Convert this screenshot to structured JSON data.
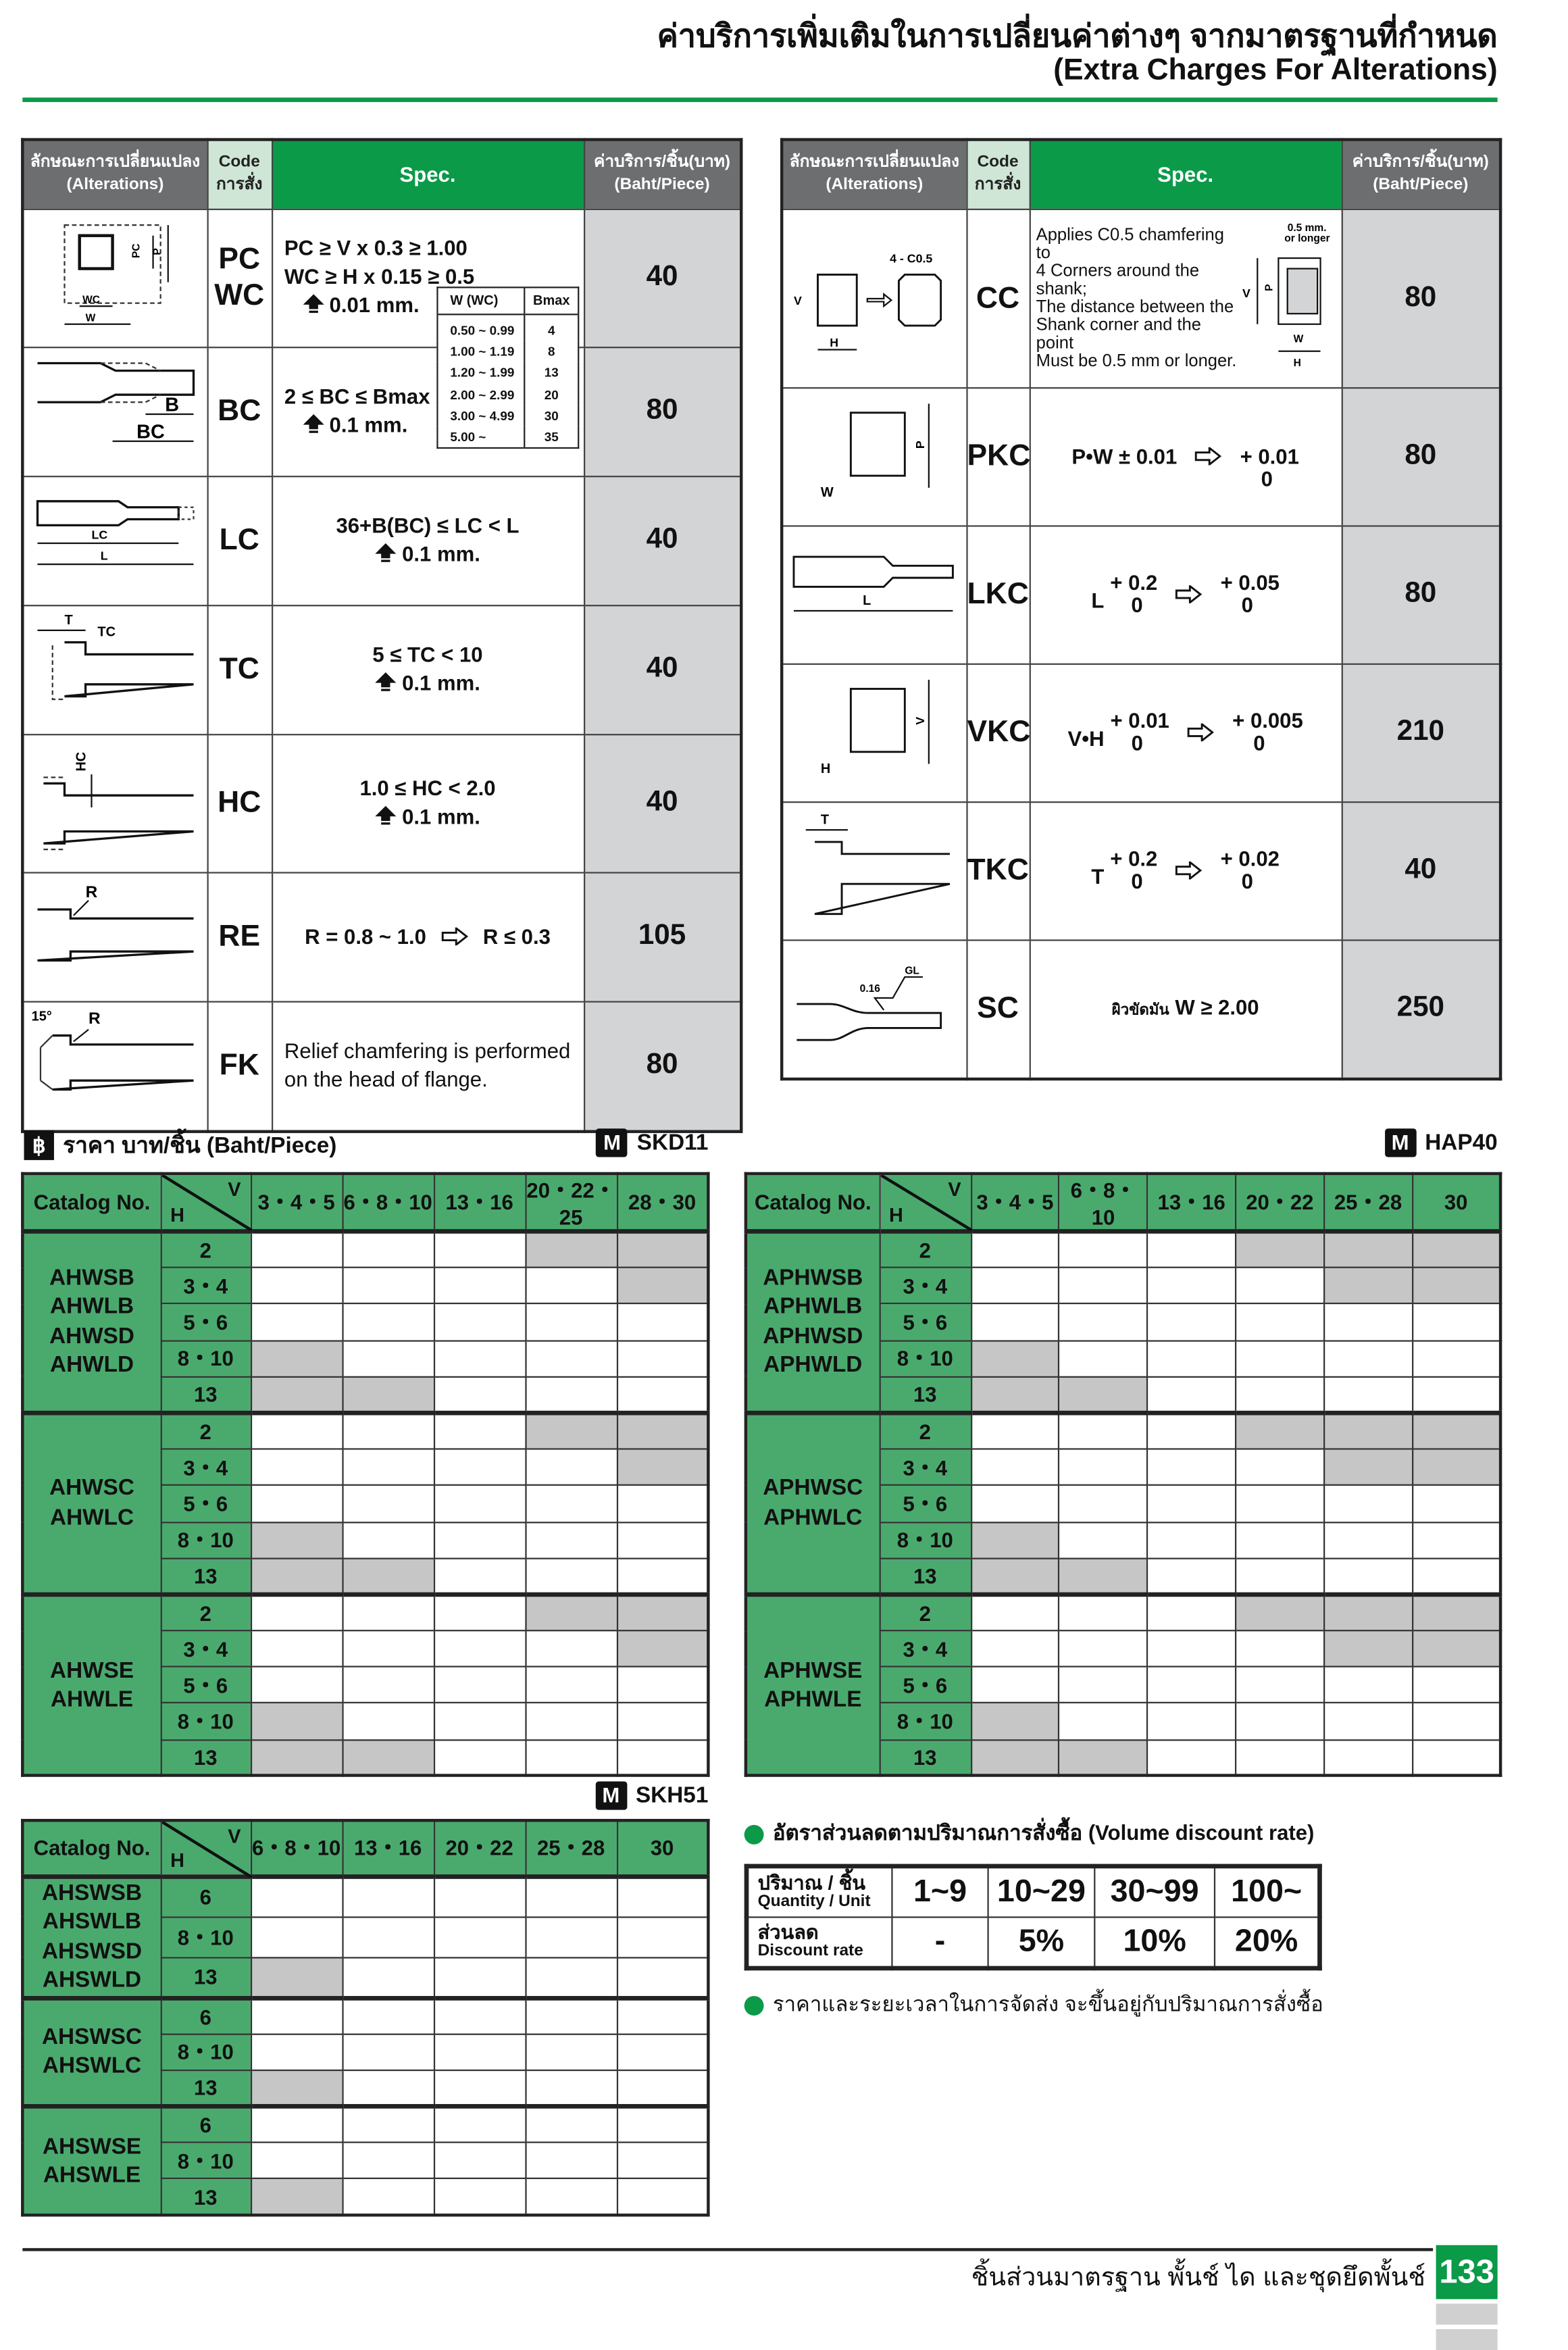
{
  "header": {
    "title_th": "ค่าบริการเพิ่มเติมในการเปลี่ยนค่าต่างๆ จากมาตรฐานที่กำหนด",
    "title_en": "(Extra Charges For Alterations)"
  },
  "colors": {
    "accent_green": "#0a9a48",
    "table_green": "#4aaa6e",
    "header_gray": "#6d6e70",
    "price_gray": "#d3d4d6",
    "unavailable_gray": "#c6c6c6"
  },
  "alt_headers": {
    "alt_th": "ลักษณะการเปลี่ยนแปลง",
    "alt_en": "(Alterations)",
    "code_en": "Code",
    "code_th": "การสั่ง",
    "spec": "Spec.",
    "price_th": "ค่าบริการ/ชิ้น(บาท)",
    "price_en": "(Baht/Piece)"
  },
  "left_rows": [
    {
      "code": "PC\nWC",
      "spec": [
        "PC ≥ V x 0.3 ≥ 1.00",
        "WC ≥ H x 0.15 ≥ 0.5",
        "0.01 mm."
      ],
      "price": "40",
      "labels": [
        "PC",
        "P",
        "WC",
        "W"
      ]
    },
    {
      "code": "BC",
      "spec": [
        "2 ≤ BC ≤ Bmax",
        "0.1 mm."
      ],
      "price": "80",
      "labels": [
        "B",
        "BC"
      ]
    },
    {
      "code": "LC",
      "spec": [
        "36+B(BC) ≤ LC < L",
        "0.1 mm."
      ],
      "price": "40",
      "labels": [
        "LC",
        "L"
      ]
    },
    {
      "code": "TC",
      "spec": [
        "5 ≤ TC < 10",
        "0.1 mm."
      ],
      "price": "40",
      "labels": [
        "T",
        "TC"
      ]
    },
    {
      "code": "HC",
      "spec": [
        "1.0 ≤ HC < 2.0",
        "0.1 mm."
      ],
      "price": "40",
      "labels": [
        "HC"
      ]
    },
    {
      "code": "RE",
      "spec": [
        "R = 0.8 ~ 1.0",
        "R ≤ 0.3"
      ],
      "price": "105",
      "labels": [
        "R"
      ]
    },
    {
      "code": "FK",
      "spec": [
        "Relief chamfering is performed",
        "on the head of flange."
      ],
      "price": "80",
      "labels": [
        "15°",
        "R"
      ]
    }
  ],
  "bmax_table": {
    "headers": [
      "W (WC)",
      "Bmax"
    ],
    "rows": [
      [
        "0.50 ~ 0.99",
        "4"
      ],
      [
        "1.00 ~ 1.19",
        "8"
      ],
      [
        "1.20 ~ 1.99",
        "13"
      ],
      [
        "2.00 ~ 2.99",
        "20"
      ],
      [
        "3.00 ~ 4.99",
        "30"
      ],
      [
        "5.00 ~",
        "35"
      ]
    ]
  },
  "right_rows": [
    {
      "code": "CC",
      "spec": [
        "Applies C0.5 chamfering to",
        "4 Corners around the shank;",
        "The distance between the",
        "Shank corner and the point",
        "Must be 0.5 mm or longer."
      ],
      "price": "80",
      "labels": [
        "4 - C0.5",
        "V",
        "H",
        "0.5 mm.",
        "or longer",
        "P",
        "W",
        "H",
        "V"
      ]
    },
    {
      "code": "PKC",
      "spec": {
        "base": "P•W ± 0.01",
        "from_up": "",
        "from_low": "",
        "to_up": "+ 0.01",
        "to_low": "0"
      },
      "price": "80",
      "labels": [
        "P",
        "W"
      ]
    },
    {
      "code": "LKC",
      "spec": {
        "base": "L",
        "from_up": "+ 0.2",
        "from_low": "0",
        "to_up": "+ 0.05",
        "to_low": "0"
      },
      "price": "80",
      "labels": [
        "L"
      ]
    },
    {
      "code": "VKC",
      "spec": {
        "base": "V•H",
        "from_up": "+ 0.01",
        "from_low": "0",
        "to_up": "+ 0.005",
        "to_low": "0"
      },
      "price": "210",
      "labels": [
        "V",
        "H"
      ]
    },
    {
      "code": "TKC",
      "spec": {
        "base": "T",
        "from_up": "+ 0.2",
        "from_low": "0",
        "to_up": "+ 0.02",
        "to_low": "0"
      },
      "price": "40",
      "labels": [
        "T"
      ]
    },
    {
      "code": "SC",
      "spec": {
        "prefix": "ผิวขัดมัน",
        "text": "W ≥ 2.00"
      },
      "price": "250",
      "labels": [
        "GL",
        "0.16"
      ]
    }
  ],
  "price_section": {
    "icon": "baht-icon",
    "baht_symbol": "฿",
    "title": "ราคา บาท/ชิ้น (Baht/Piece)",
    "material_badge": "M"
  },
  "price_tables": [
    {
      "material": "SKD11",
      "catalog_header": "Catalog No.",
      "v_label": "V",
      "h_label": "H",
      "columns": [
        "3・4・5",
        "6・8・10",
        "13・16",
        "20・22・25",
        "28・30"
      ],
      "groups": [
        {
          "catalog": "AHWSB\nAHWLB\nAHWSD\nAHWLD",
          "rows": [
            {
              "h": "2",
              "unavailable": [
                3,
                4
              ]
            },
            {
              "h": "3・4",
              "unavailable": [
                4
              ]
            },
            {
              "h": "5・6",
              "unavailable": []
            },
            {
              "h": "8・10",
              "unavailable": [
                0
              ]
            },
            {
              "h": "13",
              "unavailable": [
                0,
                1
              ]
            }
          ]
        },
        {
          "catalog": "AHWSC\nAHWLC",
          "rows": [
            {
              "h": "2",
              "unavailable": [
                3,
                4
              ]
            },
            {
              "h": "3・4",
              "unavailable": [
                4
              ]
            },
            {
              "h": "5・6",
              "unavailable": []
            },
            {
              "h": "8・10",
              "unavailable": [
                0
              ]
            },
            {
              "h": "13",
              "unavailable": [
                0,
                1
              ]
            }
          ]
        },
        {
          "catalog": "AHWSE\nAHWLE",
          "rows": [
            {
              "h": "2",
              "unavailable": [
                3,
                4
              ]
            },
            {
              "h": "3・4",
              "unavailable": [
                4
              ]
            },
            {
              "h": "5・6",
              "unavailable": []
            },
            {
              "h": "8・10",
              "unavailable": [
                0
              ]
            },
            {
              "h": "13",
              "unavailable": [
                0,
                1
              ]
            }
          ]
        }
      ]
    },
    {
      "material": "HAP40",
      "catalog_header": "Catalog No.",
      "v_label": "V",
      "h_label": "H",
      "columns": [
        "3・4・5",
        "6・8・10",
        "13・16",
        "20・22",
        "25・28",
        "30"
      ],
      "groups": [
        {
          "catalog": "APHWSB\nAPHWLB\nAPHWSD\nAPHWLD",
          "rows": [
            {
              "h": "2",
              "unavailable": [
                3,
                4,
                5
              ]
            },
            {
              "h": "3・4",
              "unavailable": [
                4,
                5
              ]
            },
            {
              "h": "5・6",
              "unavailable": []
            },
            {
              "h": "8・10",
              "unavailable": [
                0
              ]
            },
            {
              "h": "13",
              "unavailable": [
                0,
                1
              ]
            }
          ]
        },
        {
          "catalog": "APHWSC\nAPHWLC",
          "rows": [
            {
              "h": "2",
              "unavailable": [
                3,
                4,
                5
              ]
            },
            {
              "h": "3・4",
              "unavailable": [
                4,
                5
              ]
            },
            {
              "h": "5・6",
              "unavailable": []
            },
            {
              "h": "8・10",
              "unavailable": [
                0
              ]
            },
            {
              "h": "13",
              "unavailable": [
                0,
                1
              ]
            }
          ]
        },
        {
          "catalog": "APHWSE\nAPHWLE",
          "rows": [
            {
              "h": "2",
              "unavailable": [
                3,
                4,
                5
              ]
            },
            {
              "h": "3・4",
              "unavailable": [
                4,
                5
              ]
            },
            {
              "h": "5・6",
              "unavailable": []
            },
            {
              "h": "8・10",
              "unavailable": [
                0
              ]
            },
            {
              "h": "13",
              "unavailable": [
                0,
                1
              ]
            }
          ]
        }
      ]
    },
    {
      "material": "SKH51",
      "catalog_header": "Catalog No.",
      "v_label": "V",
      "h_label": "H",
      "columns": [
        "6・8・10",
        "13・16",
        "20・22",
        "25・28",
        "30"
      ],
      "groups": [
        {
          "catalog": "AHSWSB\nAHSWLB\nAHSWSD\nAHSWLD",
          "rows": [
            {
              "h": "6",
              "unavailable": []
            },
            {
              "h": "8・10",
              "unavailable": []
            },
            {
              "h": "13",
              "unavailable": [
                0
              ]
            }
          ]
        },
        {
          "catalog": "AHSWSC\nAHSWLC",
          "rows": [
            {
              "h": "6",
              "unavailable": []
            },
            {
              "h": "8・10",
              "unavailable": []
            },
            {
              "h": "13",
              "unavailable": [
                0
              ]
            }
          ]
        },
        {
          "catalog": "AHSWSE\nAHSWLE",
          "rows": [
            {
              "h": "6",
              "unavailable": []
            },
            {
              "h": "8・10",
              "unavailable": []
            },
            {
              "h": "13",
              "unavailable": [
                0
              ]
            }
          ]
        }
      ]
    }
  ],
  "volume_discount": {
    "title": "อัตราส่วนลดตามปริมาณการสั่งซื้อ (Volume discount rate)",
    "qty_label_th": "ปริมาณ / ชิ้น",
    "qty_label_en": "Quantity / Unit",
    "rate_label_th": "ส่วนลด",
    "rate_label_en": "Discount rate",
    "quantities": [
      "1~9",
      "10~29",
      "30~99",
      "100~"
    ],
    "rates": [
      "-",
      "5%",
      "10%",
      "20%"
    ]
  },
  "note": "ราคาและระยะเวลาในการจัดส่ง จะขึ้นอยู่กับปริมาณการสั่งซื้อ",
  "footer": {
    "text": "ชิ้นส่วนมาตรฐาน  พั้นช์  ได  และชุดยึดพั้นช์",
    "page": "133"
  }
}
